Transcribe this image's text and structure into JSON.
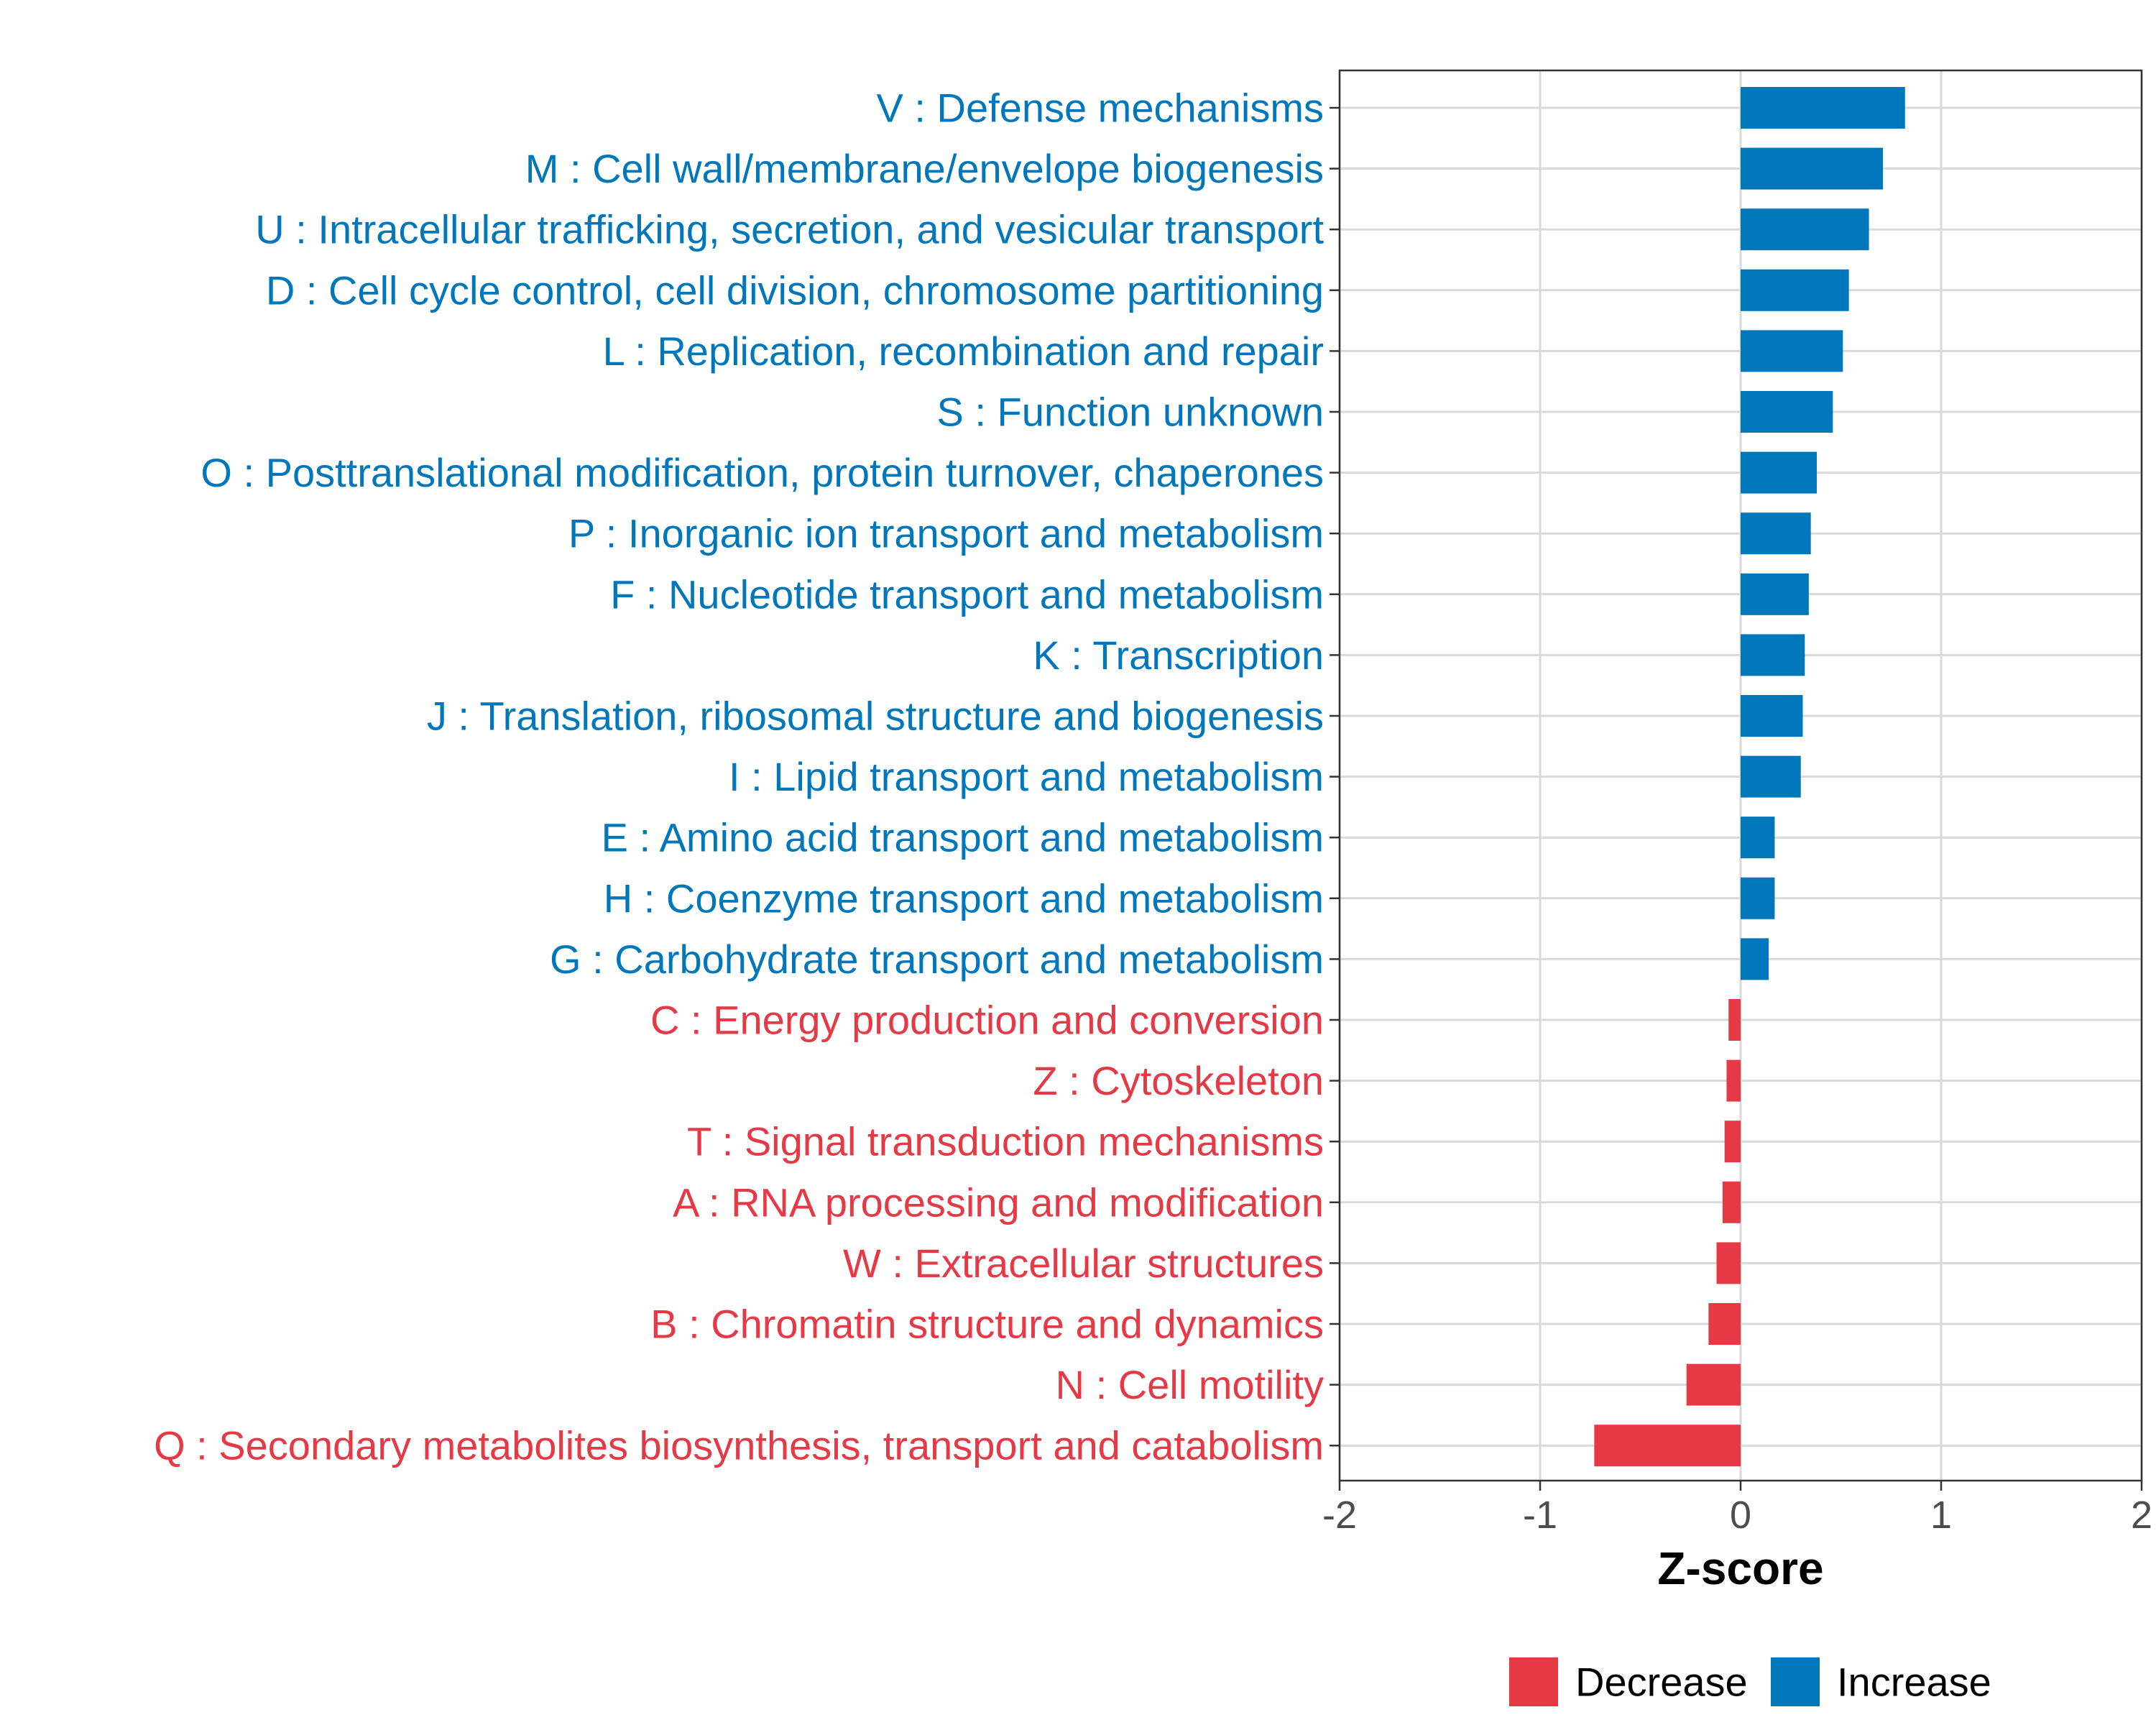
{
  "colors": {
    "increase": "#0077BB",
    "decrease": "#E63946",
    "grid": "#d9d9d9",
    "panel_border": "#333333",
    "tick_text": "#4d4d4d"
  },
  "chart_data": {
    "type": "bar",
    "orientation": "horizontal",
    "xlabel": "Z-score",
    "ylabel": "",
    "xlim": [
      -2,
      2
    ],
    "xticks": [
      -2,
      -1,
      0,
      1,
      2
    ],
    "xtick_labels": [
      "-2",
      "-1",
      "0",
      "1",
      "2"
    ],
    "grid": true,
    "legend_position": "bottom",
    "legend": [
      {
        "name": "Decrease",
        "color_key": "decrease"
      },
      {
        "name": "Increase",
        "color_key": "increase"
      }
    ],
    "categories": [
      "V : Defense mechanisms",
      "M : Cell wall/membrane/envelope biogenesis",
      "U : Intracellular trafficking, secretion, and vesicular transport",
      "D : Cell cycle control, cell division, chromosome partitioning",
      "L : Replication, recombination and repair",
      "S : Function unknown",
      "O : Posttranslational modification, protein turnover, chaperones",
      "P : Inorganic ion transport and metabolism",
      "F : Nucleotide transport and metabolism",
      "K : Transcription",
      "J : Translation, ribosomal structure and biogenesis",
      "I : Lipid transport and metabolism",
      "E : Amino acid transport and metabolism",
      "H : Coenzyme transport and metabolism",
      "G : Carbohydrate transport and metabolism",
      "C : Energy production and conversion",
      "Z : Cytoskeleton",
      "T : Signal transduction mechanisms",
      "A : RNA processing and modification",
      "W : Extracellular structures",
      "B : Chromatin structure and dynamics",
      "N : Cell motility",
      "Q : Secondary metabolites biosynthesis, transport and catabolism"
    ],
    "values": [
      0.82,
      0.71,
      0.64,
      0.54,
      0.51,
      0.46,
      0.38,
      0.35,
      0.34,
      0.32,
      0.31,
      0.3,
      0.17,
      0.17,
      0.14,
      -0.06,
      -0.07,
      -0.08,
      -0.09,
      -0.12,
      -0.16,
      -0.27,
      -0.73
    ]
  }
}
